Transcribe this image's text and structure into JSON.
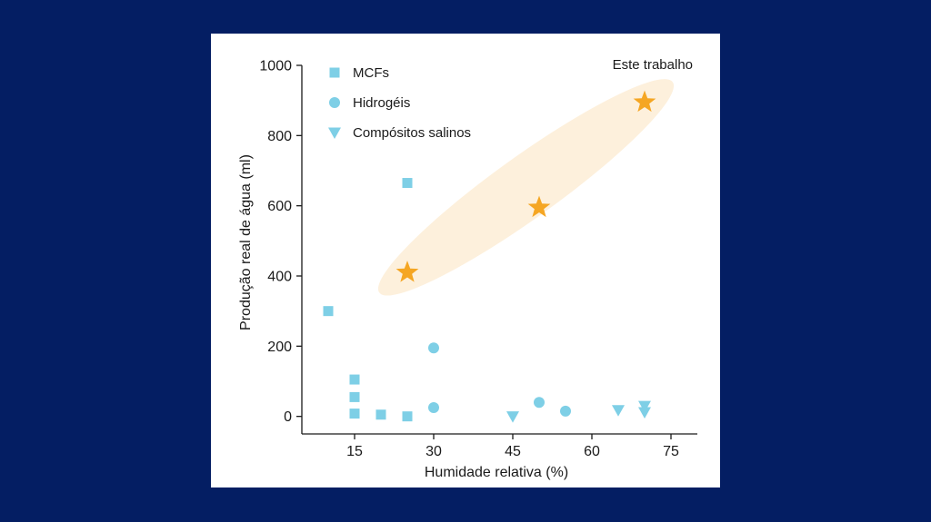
{
  "chart_data": {
    "type": "scatter",
    "title": "",
    "xlabel": "Humidade relativa (%)",
    "ylabel": "Produção real de água (ml)",
    "xlim": [
      5,
      80
    ],
    "ylim": [
      -50,
      1000
    ],
    "xticks": [
      15,
      30,
      45,
      60,
      75
    ],
    "yticks": [
      0,
      200,
      400,
      600,
      800,
      1000
    ],
    "legend_position": "top-left",
    "annotation": "Este trabalho",
    "series": [
      {
        "name": "MCFs",
        "marker": "square",
        "color": "#7ecfe6",
        "points": [
          [
            10,
            300
          ],
          [
            15,
            105
          ],
          [
            15,
            55
          ],
          [
            15,
            8
          ],
          [
            20,
            5
          ],
          [
            25,
            0
          ],
          [
            25,
            665
          ]
        ]
      },
      {
        "name": "Hidrogéis",
        "marker": "circle",
        "color": "#7ecfe6",
        "points": [
          [
            30,
            195
          ],
          [
            30,
            25
          ],
          [
            50,
            40
          ],
          [
            55,
            15
          ]
        ]
      },
      {
        "name": "Compósitos salinos",
        "marker": "triangle-down",
        "color": "#7ecfe6",
        "points": [
          [
            45,
            0
          ],
          [
            65,
            18
          ],
          [
            70,
            30
          ],
          [
            70,
            12
          ]
        ]
      },
      {
        "name": "",
        "marker": "star",
        "color": "#f5a623",
        "points": [
          [
            25,
            410
          ],
          [
            50,
            595
          ],
          [
            70,
            895
          ]
        ]
      }
    ],
    "highlight_color": "#fdf0dc"
  }
}
